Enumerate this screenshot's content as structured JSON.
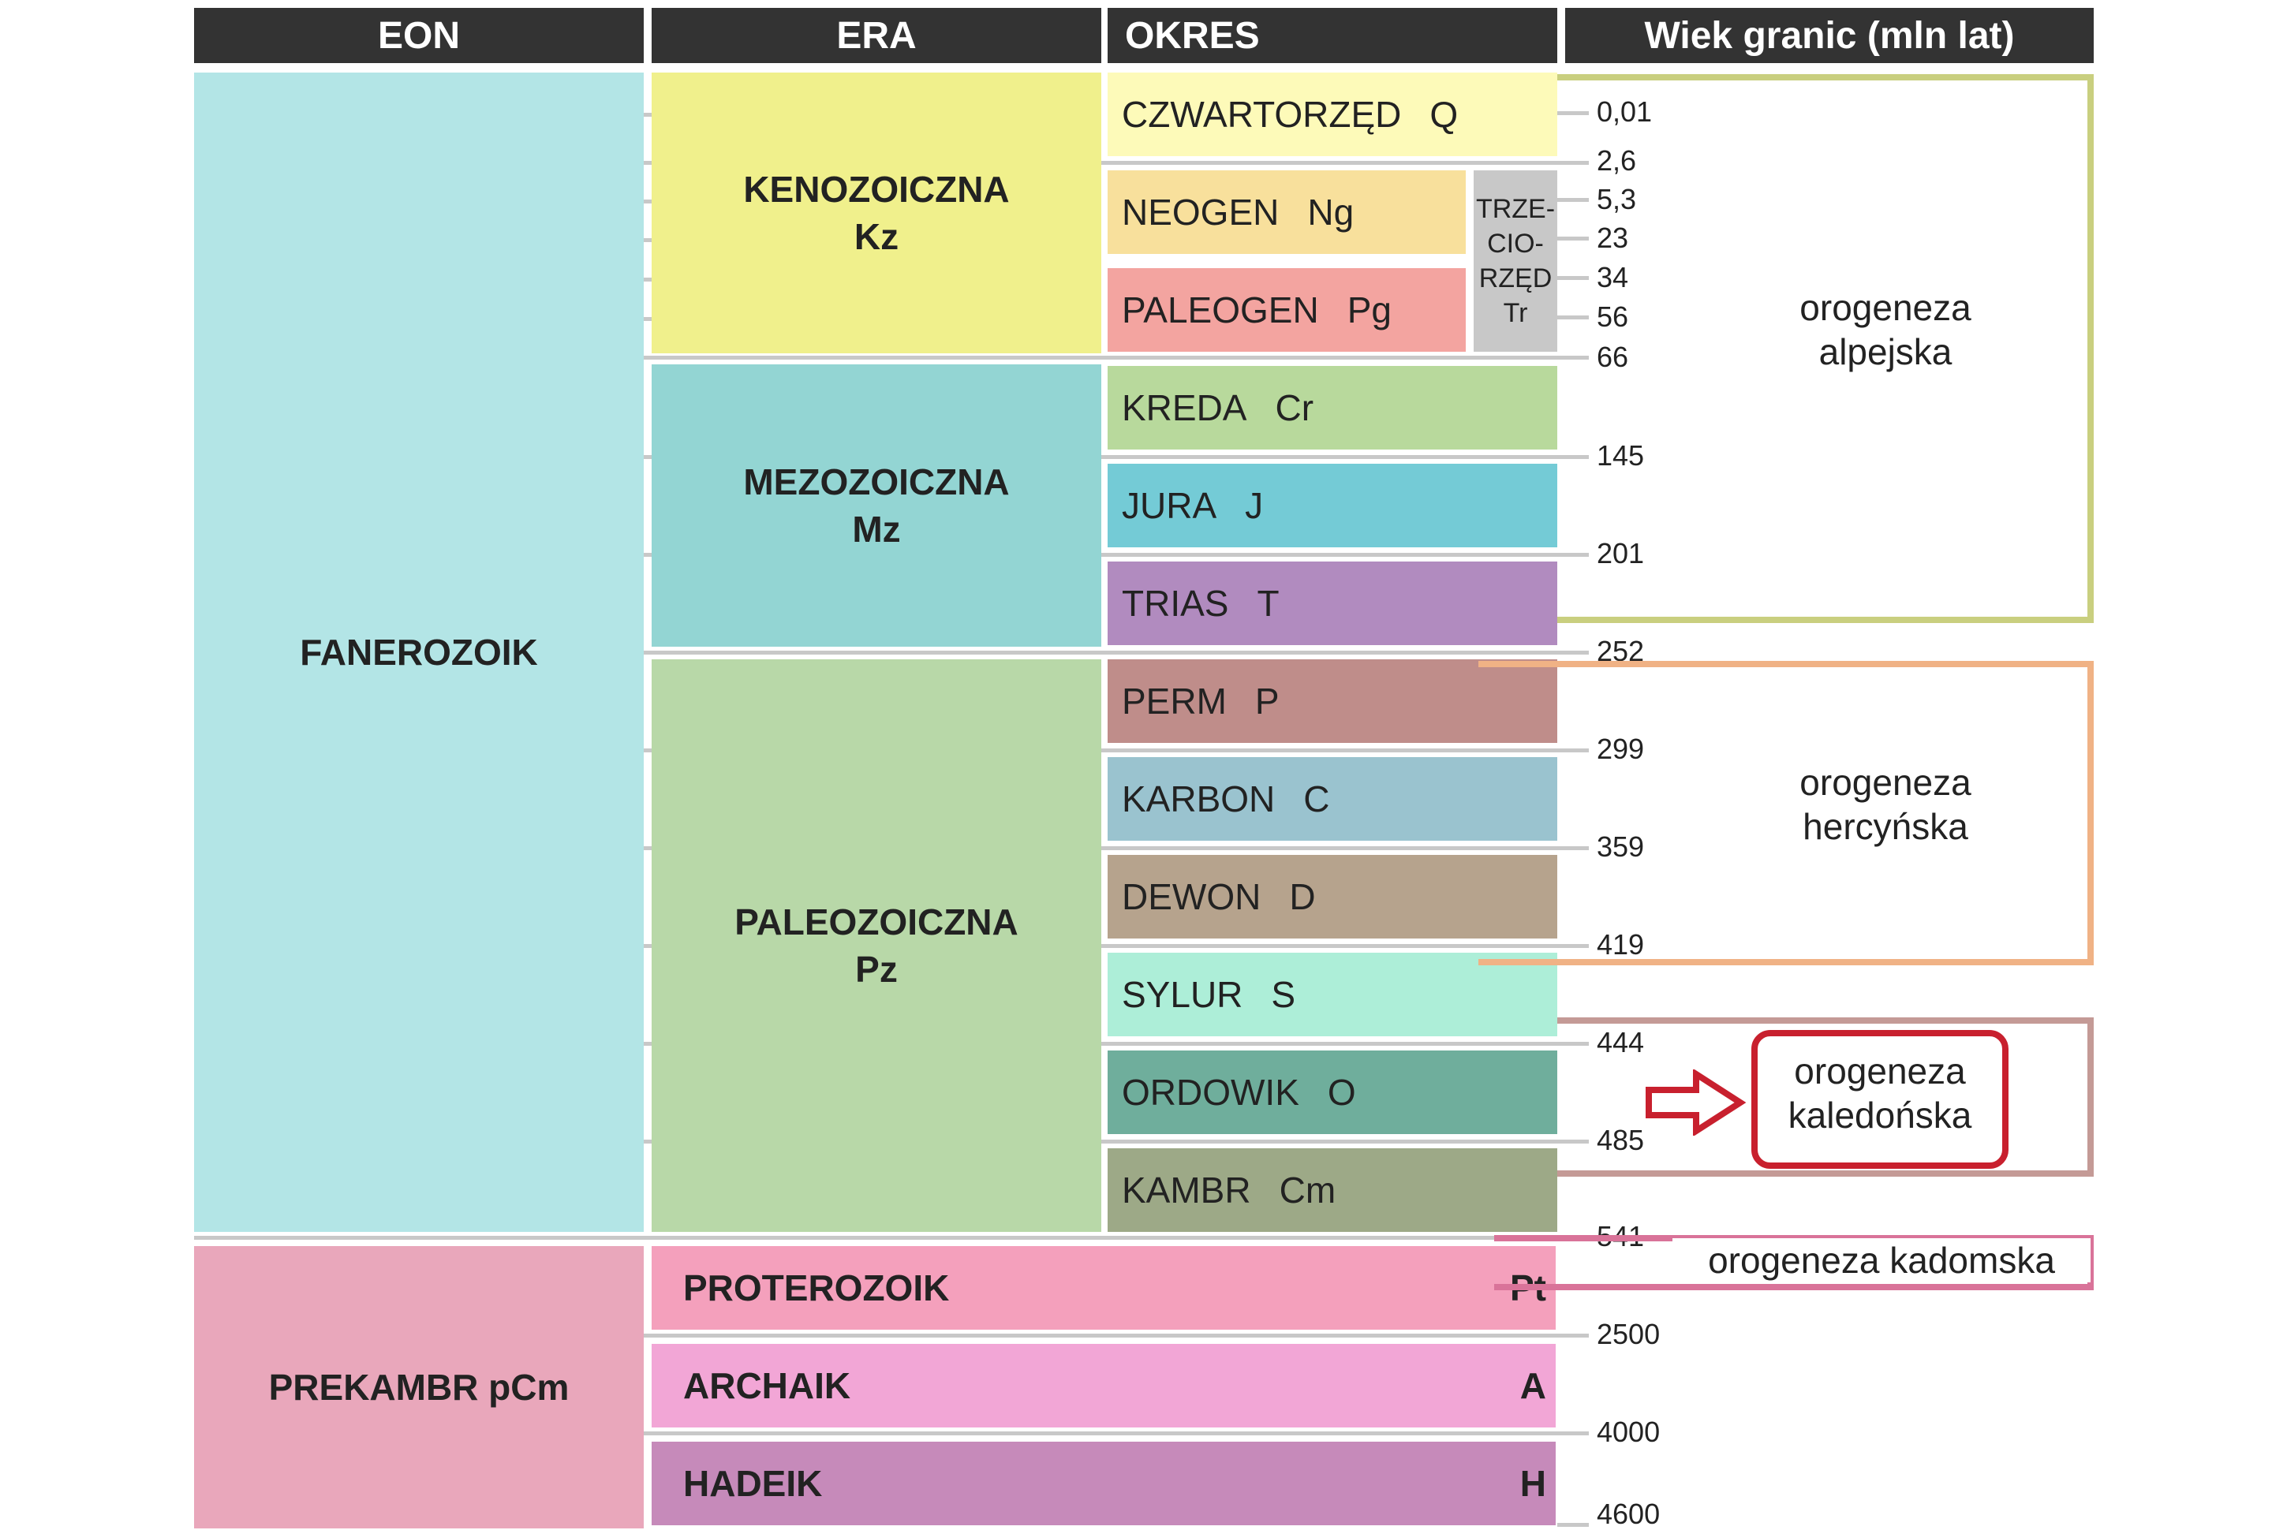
{
  "headers": {
    "eon": "EON",
    "era": "ERA",
    "okres": "OKRES",
    "wiek": "Wiek granic (mln lat)"
  },
  "eons": [
    {
      "name": "FANEROZOIK",
      "color": "#b3e5e6"
    },
    {
      "name": "PREKAMBR pCm",
      "color": "#e9a7bb"
    }
  ],
  "eras": [
    {
      "name": "KENOZOICZNA",
      "symbol": "Kz",
      "color": "#f0f08c"
    },
    {
      "name": "MEZOZOICZNA",
      "symbol": "Mz",
      "color": "#93d5d3"
    },
    {
      "name": "PALEOZOICZNA",
      "symbol": "Pz",
      "color": "#b8d8a8"
    }
  ],
  "periods": [
    {
      "name": "CZWARTORZĘD",
      "symbol": "Q",
      "color": "#fdfab9"
    },
    {
      "name": "NEOGEN",
      "symbol": "Ng",
      "color": "#f8e09c"
    },
    {
      "name": "PALEOGEN",
      "symbol": "Pg",
      "color": "#f3a4a0"
    },
    {
      "name": "KREDA",
      "symbol": "Cr",
      "color": "#b8d99c"
    },
    {
      "name": "JURA",
      "symbol": "J",
      "color": "#74cbd6"
    },
    {
      "name": "TRIAS",
      "symbol": "T",
      "color": "#b18bbf"
    },
    {
      "name": "PERM",
      "symbol": "P",
      "color": "#bf8d8a"
    },
    {
      "name": "KARBON",
      "symbol": "C",
      "color": "#9ac3cf"
    },
    {
      "name": "DEWON",
      "symbol": "D",
      "color": "#b6a38d"
    },
    {
      "name": "SYLUR",
      "symbol": "S",
      "color": "#adeed8"
    },
    {
      "name": "ORDOWIK",
      "symbol": "O",
      "color": "#6fae9c"
    },
    {
      "name": "KAMBR",
      "symbol": "Cm",
      "color": "#9da987"
    }
  ],
  "tertiary": {
    "lines": [
      "TRZE-",
      "CIO-",
      "RZĘD",
      "Tr"
    ],
    "color": "#c8c8c8"
  },
  "precambrian_eons": [
    {
      "name": "PROTEROZOIK",
      "symbol": "Pt",
      "color": "#f4a0bc"
    },
    {
      "name": "ARCHAIK",
      "symbol": "A",
      "color": "#f2a6d6"
    },
    {
      "name": "HADEIK",
      "symbol": "H",
      "color": "#c68aba"
    }
  ],
  "boundaries": [
    "0,01",
    "2,6",
    "5,3",
    "23",
    "34",
    "56",
    "66",
    "145",
    "201",
    "252",
    "299",
    "359",
    "419",
    "444",
    "485",
    "541",
    "2500",
    "4000",
    "4600"
  ],
  "orogenies": [
    {
      "name": "orogeneza alpejska",
      "lines": [
        "orogeneza",
        "alpejska"
      ],
      "color": "#c9cf7f"
    },
    {
      "name": "orogeneza hercyńska",
      "lines": [
        "orogeneza",
        "hercyńska"
      ],
      "color": "#f0b285"
    },
    {
      "name": "orogeneza kaledońska",
      "lines": [
        "orogeneza",
        "kaledońska"
      ],
      "color": "#c49a96",
      "highlight_color": "#c8202e"
    },
    {
      "name": "orogeneza kadomska",
      "lines": [
        "orogeneza kadomska"
      ],
      "color": "#d97399"
    }
  ],
  "colors": {
    "header_bg": "#333333",
    "tick": "#c8c8c8",
    "arrow": "#c8202e"
  }
}
